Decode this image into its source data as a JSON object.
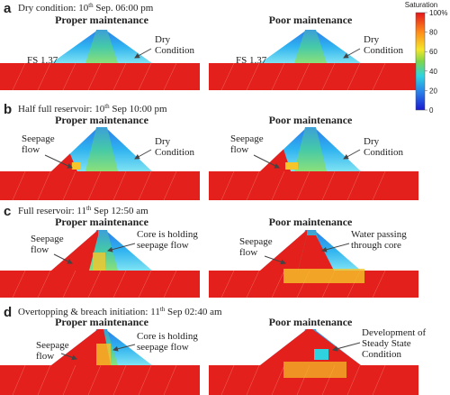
{
  "rows": [
    {
      "label": "a",
      "caption": {
        "text": "Dry condition: 10",
        "sup": "th",
        "rest": " Sep. 06:00 pm"
      },
      "panels": [
        {
          "title": "Proper maintenance",
          "annotations": [
            {
              "lines": [
                "Dry",
                "Condition"
              ]
            },
            {
              "lines": [
                "FS 1.37"
              ]
            }
          ]
        },
        {
          "title": "Poor maintenance",
          "annotations": [
            {
              "lines": [
                "Dry",
                "Condition"
              ]
            },
            {
              "lines": [
                "FS 1.37"
              ]
            }
          ]
        }
      ]
    },
    {
      "label": "b",
      "caption": {
        "text": "Half full reservoir: 10",
        "sup": "th",
        "rest": " Sep 10:00 pm"
      },
      "panels": [
        {
          "title": "Proper maintenance",
          "annotations": [
            {
              "lines": [
                "Seepage",
                "flow"
              ]
            },
            {
              "lines": [
                "Dry",
                "Condition"
              ]
            }
          ]
        },
        {
          "title": "Poor maintenance",
          "annotations": [
            {
              "lines": [
                "Seepage",
                "flow"
              ]
            },
            {
              "lines": [
                "Dry",
                "Condition"
              ]
            }
          ]
        }
      ]
    },
    {
      "label": "c",
      "caption": {
        "text": "Full reservoir: 11",
        "sup": "th",
        "rest": " Sep 12:50 am"
      },
      "panels": [
        {
          "title": "Proper maintenance",
          "annotations": [
            {
              "lines": [
                "Seepage",
                "flow"
              ]
            },
            {
              "lines": [
                "Core is holding",
                "seepage flow"
              ]
            }
          ]
        },
        {
          "title": "Poor maintenance",
          "annotations": [
            {
              "lines": [
                "Seepage",
                "flow"
              ]
            },
            {
              "lines": [
                "Water passing",
                "through core"
              ]
            }
          ]
        }
      ]
    },
    {
      "label": "d",
      "caption": {
        "text": "Overtopping & breach initiation: 11",
        "sup": "th",
        "rest": " Sep 02:40 am"
      },
      "panels": [
        {
          "title": "Proper maintenance",
          "annotations": [
            {
              "lines": [
                "Seepage",
                "flow"
              ]
            },
            {
              "lines": [
                "Core is holding",
                "seepage flow"
              ]
            }
          ]
        },
        {
          "title": "Poor maintenance",
          "annotations": [
            {
              "lines": [
                "Development of",
                "Steady State",
                "Condition"
              ]
            }
          ]
        }
      ]
    }
  ],
  "colorbar": {
    "title": "Saturation",
    "ticks": [
      {
        "value": 100,
        "label": "100%"
      },
      80,
      60,
      40,
      20,
      0
    ]
  }
}
